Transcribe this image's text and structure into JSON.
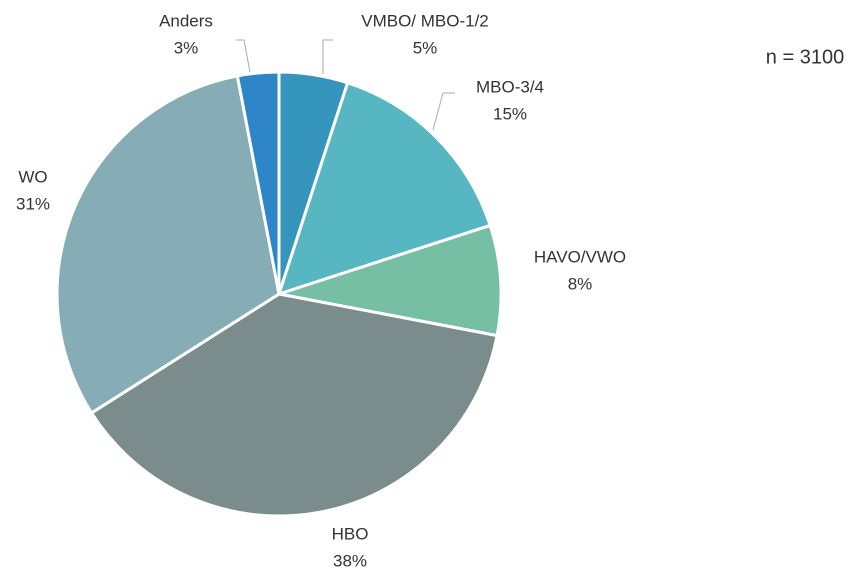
{
  "chart_data": {
    "type": "pie",
    "categories": [
      "VMBO/ MBO-1/2",
      "MBO-3/4",
      "HAVO/VWO",
      "HBO",
      "WO",
      "Anders"
    ],
    "values": [
      5,
      15,
      8,
      38,
      31,
      3
    ],
    "value_labels": [
      "5%",
      "15%",
      "8%",
      "38%",
      "31%",
      "3%"
    ],
    "colors": [
      "#3595bd",
      "#56b6c2",
      "#76bfa5",
      "#7a8c8c",
      "#86adb5",
      "#2e86c9"
    ],
    "annotation": "n = 3100"
  }
}
